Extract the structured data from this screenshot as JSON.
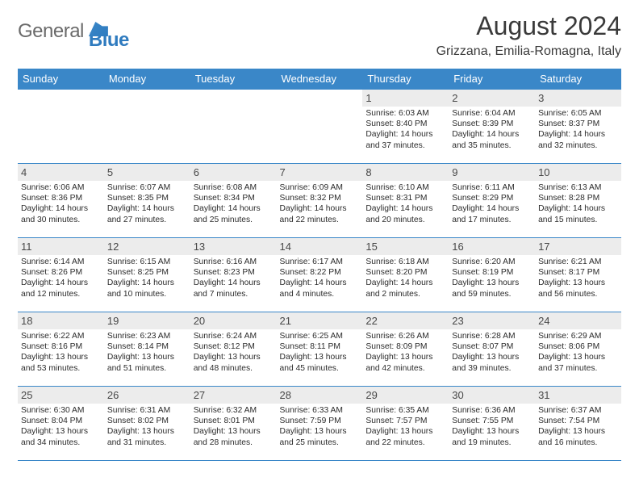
{
  "logo": {
    "word1": "General",
    "word2": "Blue"
  },
  "title": "August 2024",
  "location": "Grizzana, Emilia-Romagna, Italy",
  "colors": {
    "header_bg": "#3a87c8",
    "daynum_bg": "#ececec",
    "border": "#3a87c8",
    "text": "#303030",
    "logo_grey": "#6a6a6a",
    "logo_blue": "#2f7bbf"
  },
  "dow": [
    "Sunday",
    "Monday",
    "Tuesday",
    "Wednesday",
    "Thursday",
    "Friday",
    "Saturday"
  ],
  "weeks": [
    [
      {
        "n": "",
        "sunrise": "",
        "sunset": "",
        "daylight": ""
      },
      {
        "n": "",
        "sunrise": "",
        "sunset": "",
        "daylight": ""
      },
      {
        "n": "",
        "sunrise": "",
        "sunset": "",
        "daylight": ""
      },
      {
        "n": "",
        "sunrise": "",
        "sunset": "",
        "daylight": ""
      },
      {
        "n": "1",
        "sunrise": "6:03 AM",
        "sunset": "8:40 PM",
        "daylight": "14 hours and 37 minutes."
      },
      {
        "n": "2",
        "sunrise": "6:04 AM",
        "sunset": "8:39 PM",
        "daylight": "14 hours and 35 minutes."
      },
      {
        "n": "3",
        "sunrise": "6:05 AM",
        "sunset": "8:37 PM",
        "daylight": "14 hours and 32 minutes."
      }
    ],
    [
      {
        "n": "4",
        "sunrise": "6:06 AM",
        "sunset": "8:36 PM",
        "daylight": "14 hours and 30 minutes."
      },
      {
        "n": "5",
        "sunrise": "6:07 AM",
        "sunset": "8:35 PM",
        "daylight": "14 hours and 27 minutes."
      },
      {
        "n": "6",
        "sunrise": "6:08 AM",
        "sunset": "8:34 PM",
        "daylight": "14 hours and 25 minutes."
      },
      {
        "n": "7",
        "sunrise": "6:09 AM",
        "sunset": "8:32 PM",
        "daylight": "14 hours and 22 minutes."
      },
      {
        "n": "8",
        "sunrise": "6:10 AM",
        "sunset": "8:31 PM",
        "daylight": "14 hours and 20 minutes."
      },
      {
        "n": "9",
        "sunrise": "6:11 AM",
        "sunset": "8:29 PM",
        "daylight": "14 hours and 17 minutes."
      },
      {
        "n": "10",
        "sunrise": "6:13 AM",
        "sunset": "8:28 PM",
        "daylight": "14 hours and 15 minutes."
      }
    ],
    [
      {
        "n": "11",
        "sunrise": "6:14 AM",
        "sunset": "8:26 PM",
        "daylight": "14 hours and 12 minutes."
      },
      {
        "n": "12",
        "sunrise": "6:15 AM",
        "sunset": "8:25 PM",
        "daylight": "14 hours and 10 minutes."
      },
      {
        "n": "13",
        "sunrise": "6:16 AM",
        "sunset": "8:23 PM",
        "daylight": "14 hours and 7 minutes."
      },
      {
        "n": "14",
        "sunrise": "6:17 AM",
        "sunset": "8:22 PM",
        "daylight": "14 hours and 4 minutes."
      },
      {
        "n": "15",
        "sunrise": "6:18 AM",
        "sunset": "8:20 PM",
        "daylight": "14 hours and 2 minutes."
      },
      {
        "n": "16",
        "sunrise": "6:20 AM",
        "sunset": "8:19 PM",
        "daylight": "13 hours and 59 minutes."
      },
      {
        "n": "17",
        "sunrise": "6:21 AM",
        "sunset": "8:17 PM",
        "daylight": "13 hours and 56 minutes."
      }
    ],
    [
      {
        "n": "18",
        "sunrise": "6:22 AM",
        "sunset": "8:16 PM",
        "daylight": "13 hours and 53 minutes."
      },
      {
        "n": "19",
        "sunrise": "6:23 AM",
        "sunset": "8:14 PM",
        "daylight": "13 hours and 51 minutes."
      },
      {
        "n": "20",
        "sunrise": "6:24 AM",
        "sunset": "8:12 PM",
        "daylight": "13 hours and 48 minutes."
      },
      {
        "n": "21",
        "sunrise": "6:25 AM",
        "sunset": "8:11 PM",
        "daylight": "13 hours and 45 minutes."
      },
      {
        "n": "22",
        "sunrise": "6:26 AM",
        "sunset": "8:09 PM",
        "daylight": "13 hours and 42 minutes."
      },
      {
        "n": "23",
        "sunrise": "6:28 AM",
        "sunset": "8:07 PM",
        "daylight": "13 hours and 39 minutes."
      },
      {
        "n": "24",
        "sunrise": "6:29 AM",
        "sunset": "8:06 PM",
        "daylight": "13 hours and 37 minutes."
      }
    ],
    [
      {
        "n": "25",
        "sunrise": "6:30 AM",
        "sunset": "8:04 PM",
        "daylight": "13 hours and 34 minutes."
      },
      {
        "n": "26",
        "sunrise": "6:31 AM",
        "sunset": "8:02 PM",
        "daylight": "13 hours and 31 minutes."
      },
      {
        "n": "27",
        "sunrise": "6:32 AM",
        "sunset": "8:01 PM",
        "daylight": "13 hours and 28 minutes."
      },
      {
        "n": "28",
        "sunrise": "6:33 AM",
        "sunset": "7:59 PM",
        "daylight": "13 hours and 25 minutes."
      },
      {
        "n": "29",
        "sunrise": "6:35 AM",
        "sunset": "7:57 PM",
        "daylight": "13 hours and 22 minutes."
      },
      {
        "n": "30",
        "sunrise": "6:36 AM",
        "sunset": "7:55 PM",
        "daylight": "13 hours and 19 minutes."
      },
      {
        "n": "31",
        "sunrise": "6:37 AM",
        "sunset": "7:54 PM",
        "daylight": "13 hours and 16 minutes."
      }
    ]
  ],
  "labels": {
    "sunrise": "Sunrise: ",
    "sunset": "Sunset: ",
    "daylight": "Daylight: "
  }
}
